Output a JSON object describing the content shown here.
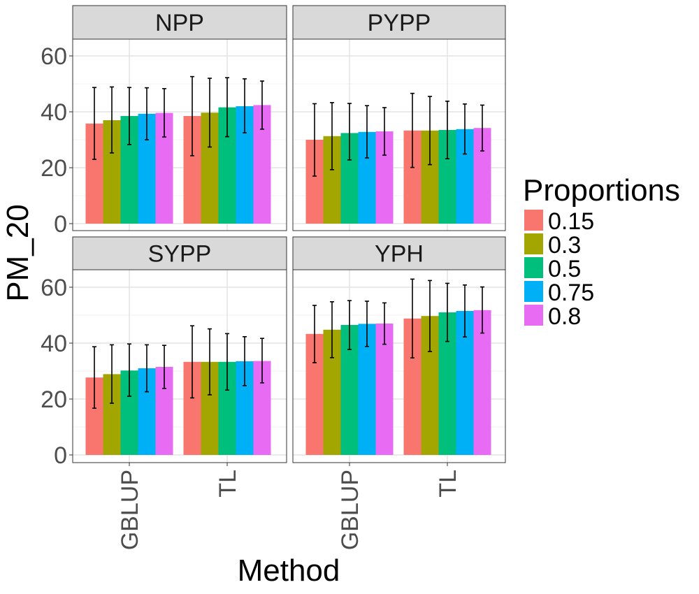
{
  "chart_data": {
    "type": "bar",
    "xlabel": "Method",
    "ylabel": "PM_20",
    "ylim": [
      0,
      66
    ],
    "yticks": [
      0,
      20,
      40,
      60
    ],
    "grid": true,
    "legend": {
      "title": "Proportions",
      "placement": "right",
      "entries": [
        "0.15",
        "0.3",
        "0.5",
        "0.75",
        "0.8"
      ],
      "colors": [
        "#F8766D",
        "#A3A500",
        "#00BF7D",
        "#00B0F6",
        "#E76BF3"
      ]
    },
    "categories": [
      "GBLUP",
      "TL"
    ],
    "panels": [
      {
        "title": "NPP",
        "series": [
          {
            "name": "0.15",
            "values": [
              35.8,
              38.5
            ],
            "err_low": [
              23.0,
              24.3
            ],
            "err_high": [
              48.7,
              52.6
            ]
          },
          {
            "name": "0.3",
            "values": [
              37.0,
              39.7
            ],
            "err_low": [
              25.3,
              27.4
            ],
            "err_high": [
              48.9,
              52.0
            ]
          },
          {
            "name": "0.5",
            "values": [
              38.5,
              41.6
            ],
            "err_low": [
              28.3,
              31.1
            ],
            "err_high": [
              48.7,
              52.2
            ]
          },
          {
            "name": "0.75",
            "values": [
              39.3,
              42.0
            ],
            "err_low": [
              30.0,
              32.5
            ],
            "err_high": [
              48.6,
              51.8
            ]
          },
          {
            "name": "0.8",
            "values": [
              39.6,
              42.4
            ],
            "err_low": [
              31.0,
              33.8
            ],
            "err_high": [
              48.3,
              51.0
            ]
          }
        ]
      },
      {
        "title": "PYPP",
        "series": [
          {
            "name": "0.15",
            "values": [
              30.0,
              33.3
            ],
            "err_low": [
              17.0,
              20.1
            ],
            "err_high": [
              42.9,
              46.6
            ]
          },
          {
            "name": "0.3",
            "values": [
              31.3,
              33.3
            ],
            "err_low": [
              19.3,
              21.1
            ],
            "err_high": [
              43.3,
              45.5
            ]
          },
          {
            "name": "0.5",
            "values": [
              32.4,
              33.5
            ],
            "err_low": [
              22.8,
              23.2
            ],
            "err_high": [
              43.0,
              43.8
            ]
          },
          {
            "name": "0.75",
            "values": [
              32.8,
              33.8
            ],
            "err_low": [
              23.5,
              24.9
            ],
            "err_high": [
              42.2,
              42.8
            ]
          },
          {
            "name": "0.8",
            "values": [
              33.0,
              34.2
            ],
            "err_low": [
              24.5,
              26.0
            ],
            "err_high": [
              41.5,
              42.4
            ]
          }
        ]
      },
      {
        "title": "SYPP",
        "series": [
          {
            "name": "0.15",
            "values": [
              27.7,
              33.3
            ],
            "err_low": [
              16.7,
              20.4
            ],
            "err_high": [
              38.7,
              46.2
            ]
          },
          {
            "name": "0.3",
            "values": [
              28.9,
              33.3
            ],
            "err_low": [
              18.5,
              21.5
            ],
            "err_high": [
              39.4,
              45.1
            ]
          },
          {
            "name": "0.5",
            "values": [
              30.2,
              33.3
            ],
            "err_low": [
              21.0,
              23.2
            ],
            "err_high": [
              39.7,
              43.4
            ]
          },
          {
            "name": "0.75",
            "values": [
              31.0,
              33.5
            ],
            "err_low": [
              22.6,
              24.8
            ],
            "err_high": [
              39.4,
              42.3
            ]
          },
          {
            "name": "0.8",
            "values": [
              31.5,
              33.6
            ],
            "err_low": [
              23.8,
              25.8
            ],
            "err_high": [
              39.2,
              41.7
            ]
          }
        ]
      },
      {
        "title": "YPH",
        "series": [
          {
            "name": "0.15",
            "values": [
              43.3,
              48.8
            ],
            "err_low": [
              33.0,
              34.7
            ],
            "err_high": [
              53.5,
              62.9
            ]
          },
          {
            "name": "0.3",
            "values": [
              44.8,
              49.7
            ],
            "err_low": [
              34.8,
              37.0
            ],
            "err_high": [
              54.8,
              62.4
            ]
          },
          {
            "name": "0.5",
            "values": [
              46.5,
              51.0
            ],
            "err_low": [
              37.7,
              40.6
            ],
            "err_high": [
              55.2,
              61.4
            ]
          },
          {
            "name": "0.75",
            "values": [
              46.9,
              51.5
            ],
            "err_low": [
              38.8,
              42.2
            ],
            "err_high": [
              55.0,
              60.8
            ]
          },
          {
            "name": "0.8",
            "values": [
              47.0,
              51.8
            ],
            "err_low": [
              39.6,
              43.6
            ],
            "err_high": [
              54.4,
              60.1
            ]
          }
        ]
      }
    ]
  }
}
